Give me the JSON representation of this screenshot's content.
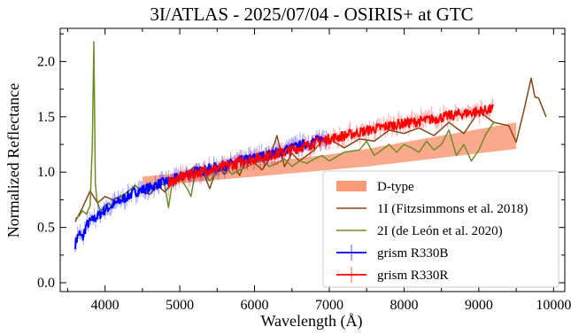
{
  "chart_data": {
    "type": "line",
    "title": "3I/ATLAS - 2025/07/04 - OSIRIS+ at GTC",
    "xlabel": "Wavelength (Å)",
    "ylabel": "Normalized Reflectance",
    "xlim": [
      3400,
      10150
    ],
    "ylim": [
      -0.08,
      2.3
    ],
    "xticks": [
      4000,
      5000,
      6000,
      7000,
      8000,
      9000,
      10000
    ],
    "yticks": [
      0.0,
      0.5,
      1.0,
      1.5,
      2.0
    ],
    "xtick_labels": [
      "4000",
      "5000",
      "6000",
      "7000",
      "8000",
      "9000",
      "10000"
    ],
    "ytick_labels": [
      "0.0",
      "0.5",
      "1.0",
      "1.5",
      "2.0"
    ],
    "grid": false,
    "legend_position": "lower right",
    "series": [
      {
        "name": "D-type",
        "kind": "band",
        "color": "#fa9a78",
        "x": [
          4500,
          5000,
          5500,
          6000,
          6500,
          7000,
          7500,
          8000,
          8500,
          9000,
          9500
        ],
        "lower": [
          0.87,
          0.9,
          0.93,
          0.96,
          0.99,
          1.02,
          1.05,
          1.09,
          1.13,
          1.17,
          1.21
        ],
        "upper": [
          0.96,
          0.99,
          1.03,
          1.07,
          1.12,
          1.16,
          1.21,
          1.27,
          1.33,
          1.39,
          1.45
        ]
      },
      {
        "name": "1I (Fitzsimmons et al. 2018)",
        "kind": "line",
        "color": "#8b4513",
        "x": [
          3600,
          3700,
          3800,
          3900,
          4000,
          4100,
          4200,
          4300,
          4400,
          4500,
          4600,
          4700,
          4800,
          4900,
          5000,
          5100,
          5200,
          5300,
          5400,
          5500,
          5600,
          5700,
          5800,
          5900,
          6000,
          6100,
          6200,
          6300,
          6400,
          6500,
          6600,
          6700,
          6800,
          6900,
          7000,
          7200,
          7400,
          7600,
          7800,
          8000,
          8200,
          8400,
          8600,
          8800,
          9000,
          9200,
          9400,
          9500,
          9600,
          9700,
          9750,
          9800,
          9900
        ],
        "y": [
          0.55,
          0.68,
          0.83,
          0.72,
          0.78,
          0.75,
          0.78,
          0.75,
          0.88,
          0.82,
          0.8,
          0.88,
          0.82,
          0.9,
          0.97,
          1.0,
          1.05,
          1.02,
          0.85,
          1.05,
          0.98,
          1.1,
          0.97,
          1.15,
          1.08,
          1.02,
          1.12,
          1.33,
          1.05,
          1.17,
          1.1,
          1.15,
          1.2,
          1.28,
          1.3,
          1.22,
          1.3,
          1.28,
          1.38,
          1.35,
          1.4,
          1.33,
          1.45,
          1.35,
          1.55,
          1.45,
          1.42,
          1.27,
          1.55,
          1.85,
          1.68,
          1.67,
          1.5
        ]
      },
      {
        "name": "2I (de León et al. 2020)",
        "kind": "line",
        "color": "#6b8e23",
        "x": [
          3600,
          3650,
          3700,
          3750,
          3800,
          3830,
          3850,
          3870,
          3890,
          3920,
          3950,
          4000,
          4050,
          4100,
          4200,
          4300,
          4400,
          4500,
          4600,
          4700,
          4800,
          4850,
          4900,
          5000,
          5100,
          5150,
          5200,
          5300,
          5400,
          5500,
          5600,
          5700,
          5800,
          5900,
          6000,
          6100,
          6200,
          6300,
          6400,
          6500,
          6600,
          6700,
          6800,
          6900,
          7000,
          7200,
          7400,
          7500,
          7600,
          7700,
          7800,
          7900,
          8000,
          8100,
          8200,
          8300,
          8400,
          8500,
          8600,
          8700,
          8800,
          8900,
          9000,
          9100,
          9200
        ],
        "y": [
          0.58,
          0.6,
          0.65,
          0.62,
          0.7,
          1.25,
          2.18,
          0.9,
          0.75,
          0.68,
          0.65,
          0.7,
          0.72,
          0.68,
          0.78,
          0.82,
          0.88,
          0.83,
          0.85,
          0.9,
          0.88,
          0.68,
          0.92,
          0.95,
          0.85,
          0.78,
          0.98,
          1.02,
          0.92,
          1.0,
          1.05,
          0.98,
          1.02,
          1.05,
          1.08,
          1.1,
          1.05,
          1.08,
          1.12,
          1.05,
          1.1,
          1.08,
          1.12,
          1.15,
          1.1,
          1.18,
          1.2,
          1.28,
          1.15,
          1.2,
          1.25,
          1.18,
          1.25,
          1.22,
          1.18,
          1.28,
          1.2,
          1.25,
          1.38,
          1.15,
          1.25,
          1.1,
          1.2,
          1.35,
          1.45
        ]
      },
      {
        "name": "grism R330B",
        "kind": "spectrum",
        "color": "#0000ff",
        "x": [
          3600,
          3650,
          3700,
          3750,
          3800,
          3900,
          4000,
          4100,
          4200,
          4300,
          4400,
          4500,
          4600,
          4700,
          4800,
          4900,
          5000,
          5200,
          5400,
          5600,
          5800,
          6000,
          6200,
          6400,
          6600,
          6800,
          7000
        ],
        "y": [
          0.35,
          0.45,
          0.4,
          0.52,
          0.55,
          0.6,
          0.66,
          0.7,
          0.74,
          0.78,
          0.82,
          0.84,
          0.86,
          0.89,
          0.91,
          0.93,
          0.96,
          1.0,
          1.03,
          1.06,
          1.1,
          1.13,
          1.16,
          1.2,
          1.24,
          1.28,
          1.32
        ]
      },
      {
        "name": "grism R330R",
        "kind": "spectrum",
        "color": "#ff0000",
        "x": [
          4850,
          5000,
          5200,
          5400,
          5600,
          5800,
          6000,
          6200,
          6400,
          6600,
          6800,
          7000,
          7200,
          7400,
          7600,
          7800,
          8000,
          8200,
          8400,
          8600,
          8800,
          9000,
          9200
        ],
        "y": [
          0.9,
          0.95,
          0.99,
          1.02,
          1.05,
          1.09,
          1.12,
          1.15,
          1.18,
          1.22,
          1.26,
          1.3,
          1.33,
          1.36,
          1.39,
          1.42,
          1.44,
          1.46,
          1.48,
          1.51,
          1.53,
          1.55,
          1.57
        ]
      }
    ]
  }
}
